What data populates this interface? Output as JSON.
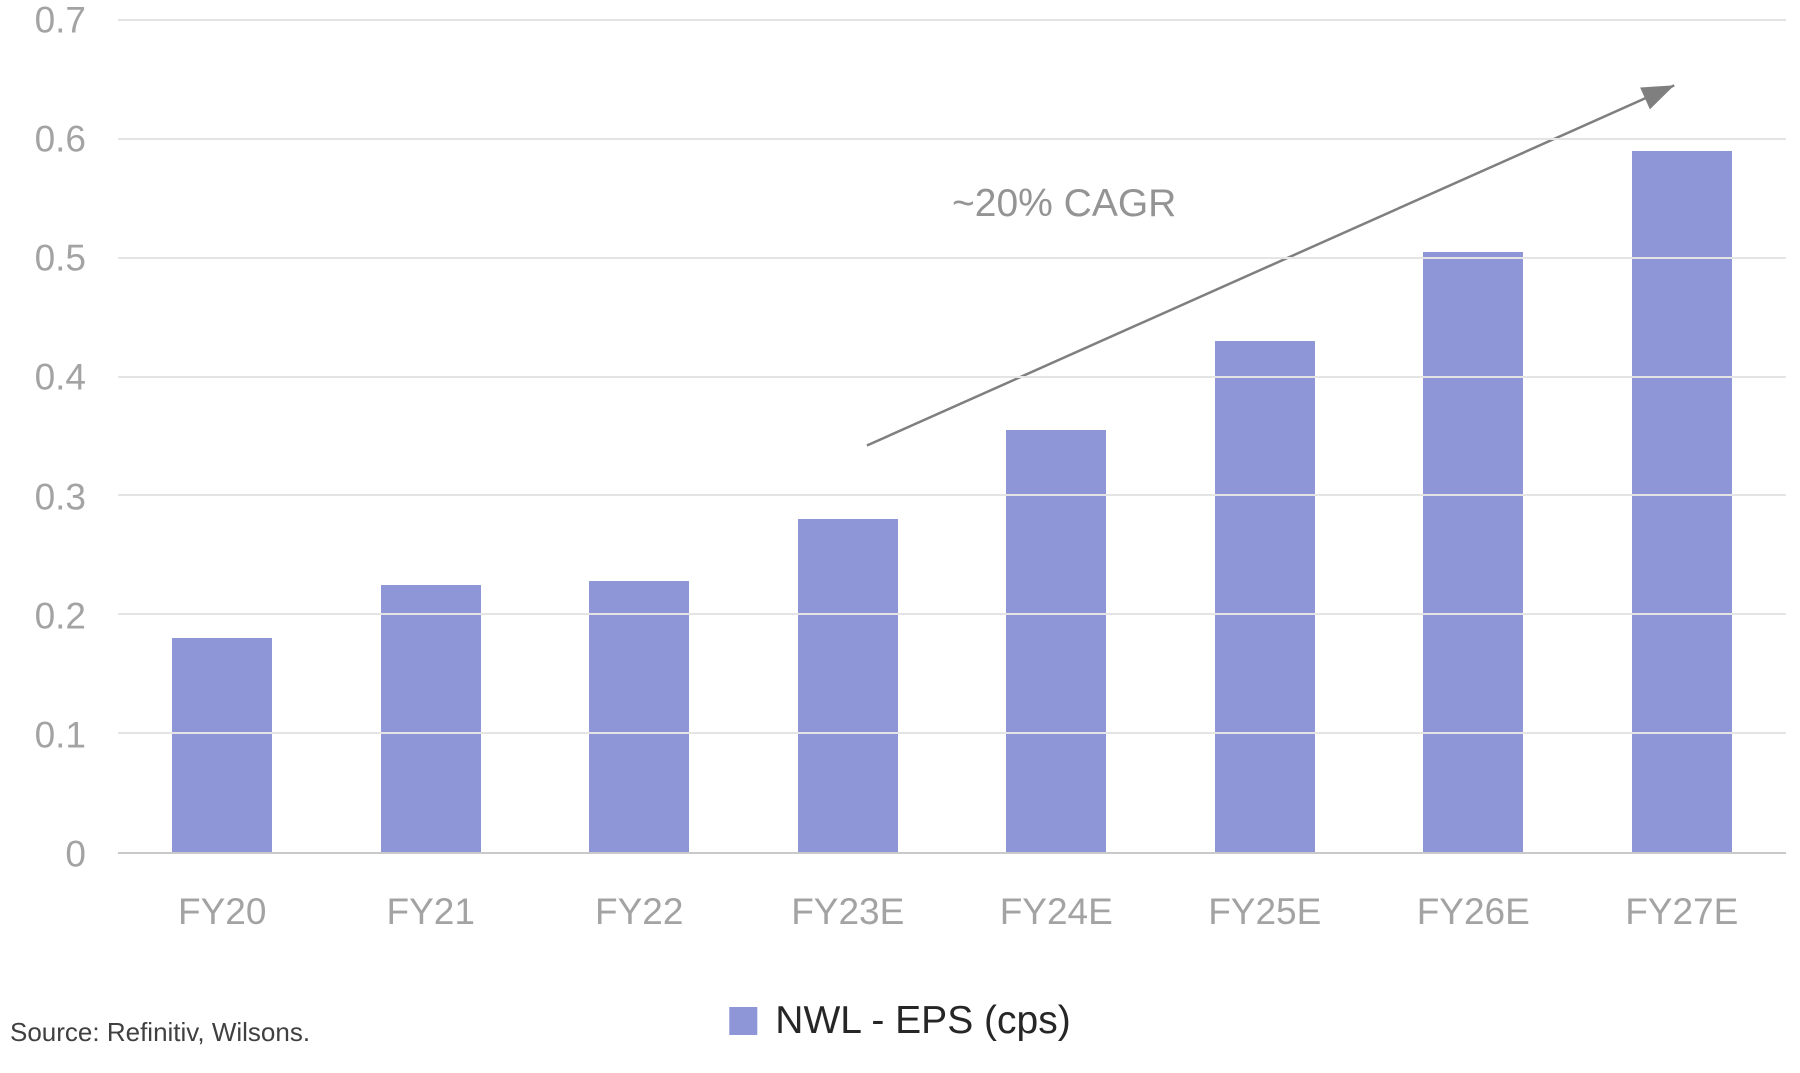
{
  "chart_data": {
    "type": "bar",
    "title": "",
    "xlabel": "",
    "ylabel": "",
    "categories": [
      "FY20",
      "FY21",
      "FY22",
      "FY23E",
      "FY24E",
      "FY25E",
      "FY26E",
      "FY27E"
    ],
    "series": [
      {
        "name": "NWL - EPS (cps)",
        "values": [
          0.18,
          0.225,
          0.228,
          0.28,
          0.355,
          0.43,
          0.505,
          0.59
        ]
      }
    ],
    "ylim": [
      0,
      0.7
    ],
    "yticks": [
      "0",
      "0.1",
      "0.2",
      "0.3",
      "0.4",
      "0.5",
      "0.6",
      "0.7"
    ],
    "grid": true,
    "legend_position": "bottom-center",
    "colors": {
      "bar": "#8e96d7",
      "gridline": "#e4e4e4",
      "axis_line": "#c9c9c9",
      "tick_label": "#a3a3a3",
      "annotation_text": "#949494",
      "arrow": "#7f7f7f",
      "legend_text": "#262626",
      "source_text": "#404040"
    },
    "annotation": {
      "text": "~20% CAGR",
      "text_x_frac": 0.5,
      "text_y_value": 0.545,
      "arrow": {
        "x1_frac": 0.449,
        "y1_value": 0.342,
        "x2_frac": 0.933,
        "y2_value": 0.645
      }
    }
  },
  "footer": {
    "source": "Source: Refinitiv, Wilsons."
  }
}
